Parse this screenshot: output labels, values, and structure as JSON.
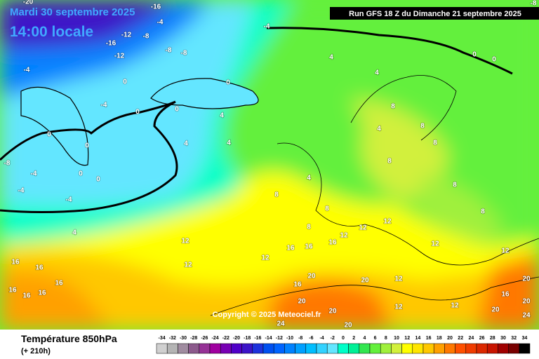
{
  "header": {
    "date": "Mardi 30 septembre 2025",
    "time": "14:00 locale",
    "run": "Run GFS 18 Z du Dimanche 21 septembre 2025",
    "copyright": "Copyright © 2025 Meteociel.fr"
  },
  "footer": {
    "title": "Température 850hPa",
    "lead": "(+ 210h)"
  },
  "legend": {
    "ticks": [
      -34,
      -32,
      -30,
      -28,
      -26,
      -24,
      -22,
      -20,
      -18,
      -16,
      -14,
      -12,
      -10,
      -8,
      -6,
      -4,
      -2,
      0,
      2,
      4,
      6,
      8,
      10,
      12,
      14,
      16,
      18,
      20,
      22,
      24,
      26,
      28,
      30,
      32,
      34
    ],
    "colors": [
      "#d0d0d0",
      "#b4b4b4",
      "#a08ca0",
      "#8c5a8c",
      "#963296",
      "#a000a0",
      "#7800b4",
      "#5000c8",
      "#3c14c8",
      "#1e32dc",
      "#0050f0",
      "#0064ff",
      "#0082ff",
      "#00a0ff",
      "#00beff",
      "#32d2ff",
      "#64e6ff",
      "#00ffc8",
      "#00f096",
      "#32e650",
      "#64f03c",
      "#a0f03c",
      "#d2f03c",
      "#ffff00",
      "#ffe600",
      "#ffc800",
      "#ffa000",
      "#ff7800",
      "#ff5000",
      "#f03c00",
      "#dc2800",
      "#c81400",
      "#a00000",
      "#780000",
      "#000000"
    ]
  },
  "map_labels": [
    -20,
    -16,
    -12,
    -16,
    -12,
    -8,
    -4,
    -8,
    -8,
    -8,
    -4,
    -4,
    0,
    0,
    -4,
    0,
    0,
    4,
    0,
    0,
    0,
    0,
    -8,
    -4,
    -4,
    -4,
    4,
    4,
    4,
    4,
    4,
    0,
    0,
    8,
    4,
    8,
    8,
    8,
    4,
    8,
    8,
    8,
    8,
    8,
    12,
    12,
    12,
    12,
    12,
    12,
    16,
    16,
    16,
    12,
    12,
    16,
    16,
    16,
    16,
    16,
    16,
    20,
    16,
    20,
    20,
    20,
    12,
    12,
    12,
    16,
    20,
    20,
    24,
    20,
    24,
    20
  ]
}
